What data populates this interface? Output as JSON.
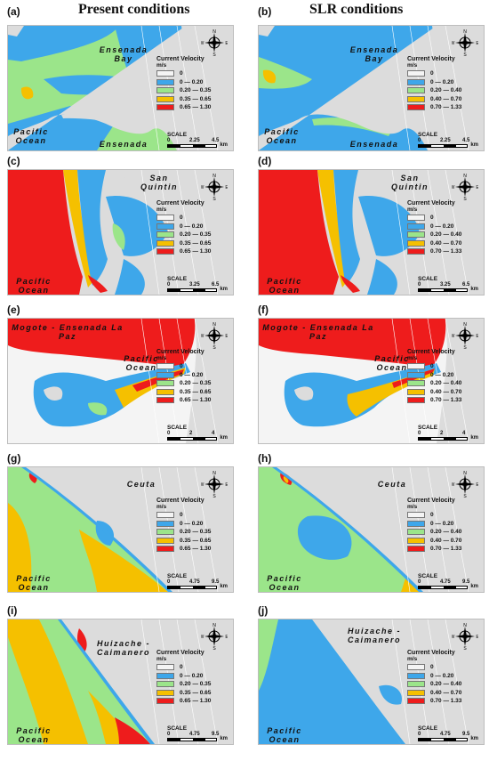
{
  "headers": {
    "left": "Present conditions",
    "right": "SLR conditions"
  },
  "colors": {
    "land": "#dcdcdc",
    "road": "#ffffff",
    "c0": "#f4f4f4",
    "c1": "#3ea7ea",
    "c2": "#9be58a",
    "c3": "#f5c000",
    "c4": "#ee1c1c"
  },
  "legend": {
    "title": "Current Velocity",
    "unit": "m/s",
    "present_ranges": [
      "0",
      "0 — 0.20",
      "0.20 — 0.35",
      "0.35 — 0.65",
      "0.65 — 1.30"
    ],
    "slr_ranges": [
      "0",
      "0 — 0.20",
      "0.20 — 0.40",
      "0.40 — 0.70",
      "0.70 — 1.33"
    ]
  },
  "compass": {
    "n": "N",
    "s": "S",
    "e": "E",
    "w": "W"
  },
  "scale_title": "SCALE",
  "scale_unit": "km",
  "panels": [
    {
      "label": "(a)",
      "places": [
        "Ensenada Bay",
        "Pacific Ocean",
        "Ensenada"
      ],
      "scale": [
        "0",
        "2.25",
        "4.5"
      ]
    },
    {
      "label": "(b)",
      "places": [
        "Ensenada Bay",
        "Pacific Ocean",
        "Ensenada"
      ],
      "scale": [
        "0",
        "2.25",
        "4.5"
      ]
    },
    {
      "label": "(c)",
      "places": [
        "San Quintin",
        "Pacific Ocean"
      ],
      "scale": [
        "0",
        "3.25",
        "6.5"
      ]
    },
    {
      "label": "(d)",
      "places": [
        "San Quintin",
        "Pacific Ocean"
      ],
      "scale": [
        "0",
        "3.25",
        "6.5"
      ]
    },
    {
      "label": "(e)",
      "places": [
        "Mogote - Ensenada La Paz",
        "Pacific Ocean"
      ],
      "scale": [
        "0",
        "2",
        "4"
      ]
    },
    {
      "label": "(f)",
      "places": [
        "Mogote - Ensenada La Paz",
        "Pacific Ocean"
      ],
      "scale": [
        "0",
        "2",
        "4"
      ]
    },
    {
      "label": "(g)",
      "places": [
        "Ceuta",
        "Pacific Ocean"
      ],
      "scale": [
        "0",
        "4.75",
        "9.5"
      ]
    },
    {
      "label": "(h)",
      "places": [
        "Ceuta",
        "Pacific Ocean"
      ],
      "scale": [
        "0",
        "4.75",
        "9.5"
      ]
    },
    {
      "label": "(i)",
      "places": [
        "Huizache - Caimanero",
        "Pacific Ocean"
      ],
      "scale": [
        "0",
        "4.75",
        "9.5"
      ]
    },
    {
      "label": "(j)",
      "places": [
        "Huizache - Caimanero",
        "Pacific Ocean"
      ],
      "scale": [
        "0",
        "4.75",
        "9.5"
      ]
    }
  ]
}
